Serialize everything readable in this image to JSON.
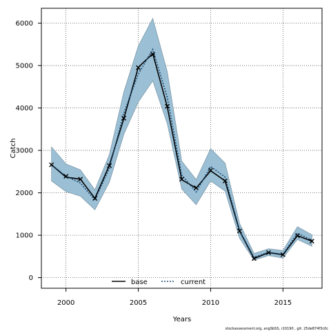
{
  "chart_data": {
    "type": "line",
    "xlabel": "Years",
    "ylabel": "Catch",
    "xlim": [
      1998.3,
      2017.7
    ],
    "ylim": [
      -250,
      6350
    ],
    "xticks": [
      2000,
      2005,
      2010,
      2015
    ],
    "yticks": [
      0,
      1000,
      2000,
      3000,
      4000,
      5000,
      6000
    ],
    "grid": true,
    "legend_position": "bottom-center",
    "x": [
      1999,
      2000,
      2001,
      2002,
      2003,
      2004,
      2005,
      2006,
      2007,
      2008,
      2009,
      2010,
      2011,
      2012,
      2013,
      2014,
      2015,
      2016,
      2017
    ],
    "band": {
      "upper": [
        3080,
        2680,
        2540,
        2070,
        2900,
        4380,
        5460,
        6110,
        4860,
        2750,
        2310,
        3040,
        2700,
        1280,
        570,
        680,
        640,
        1200,
        1010
      ],
      "lower": [
        2280,
        2030,
        1920,
        1600,
        2250,
        3380,
        4140,
        4640,
        3630,
        2090,
        1720,
        2280,
        2040,
        930,
        410,
        520,
        460,
        900,
        740
      ],
      "color": "#9bbfd4",
      "edge_color": "#7f9aab"
    },
    "series": [
      {
        "name": "base",
        "values": [
          2660,
          2370,
          2320,
          1870,
          2650,
          3750,
          4960,
          5280,
          4030,
          2310,
          2110,
          2520,
          2280,
          1100,
          450,
          590,
          540,
          990,
          860
        ],
        "color": "#000000",
        "style": "solid"
      },
      {
        "name": "current",
        "values": [
          2660,
          2390,
          2230,
          1830,
          2580,
          3880,
          4800,
          5380,
          4250,
          2420,
          2020,
          2620,
          2370,
          1110,
          480,
          600,
          550,
          1050,
          880
        ],
        "color": "#1a4a73",
        "style": "dotted"
      }
    ],
    "markers": {
      "symbol": "×",
      "values": [
        2660,
        2390,
        2320,
        1870,
        2640,
        3760,
        4950,
        5260,
        4040,
        2320,
        2120,
        2530,
        2280,
        1100,
        450,
        590,
        540,
        990,
        860
      ]
    }
  },
  "footnote": "stockassessment.org, angSbSS, r10190 , git: 25de874f3c0c"
}
